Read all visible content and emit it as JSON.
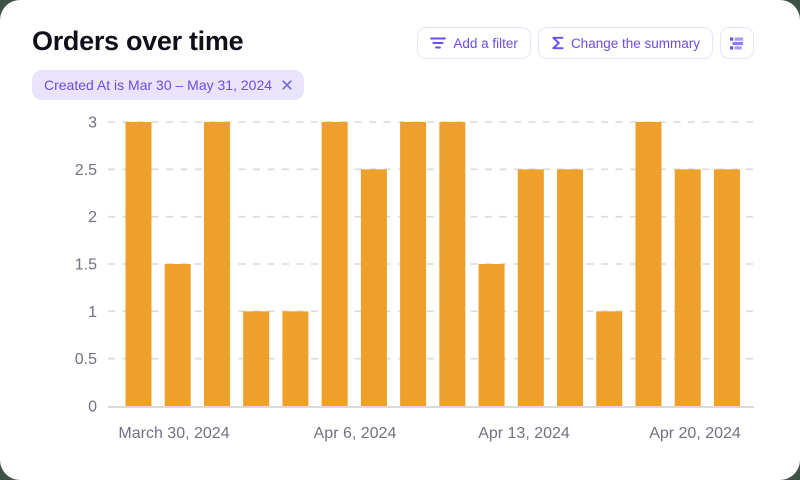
{
  "page": {
    "background_color": "#3E5245",
    "card_background": "#FFFFFF"
  },
  "header": {
    "title": "Orders over time",
    "buttons": [
      {
        "label": "Add a filter",
        "icon": "filter-icon"
      },
      {
        "label": "Change the summary",
        "icon": "sigma-icon"
      },
      {
        "label": "",
        "icon": "summary-list-icon"
      }
    ]
  },
  "filter_chip": {
    "label": "Created At is Mar 30 – May 31, 2024",
    "close_icon": "x-icon"
  },
  "chart_data": {
    "type": "bar",
    "title": "Orders over time",
    "values": [
      3,
      1.5,
      3,
      1,
      1,
      3,
      2.5,
      3,
      3,
      1.5,
      2.5,
      2.5,
      1,
      3,
      2.5,
      2.5
    ],
    "x_tick_labels": [
      "March 30, 2024",
      "Apr 6, 2024",
      "Apr 13, 2024",
      "Apr 20, 2024"
    ],
    "y_ticks": [
      0,
      0.5,
      1,
      1.5,
      2,
      2.5,
      3
    ],
    "ylim": [
      0,
      3
    ],
    "bar_color": "#EFA02A",
    "grid_color": "#D9D9DE",
    "axis_text_color": "#70727D",
    "grid_style": "dashed horizontal",
    "legend": false
  },
  "colors": {
    "accent_purple": "#6B4CE6",
    "chip_background": "#E9E4FB",
    "button_border": "#E7E3F8"
  }
}
